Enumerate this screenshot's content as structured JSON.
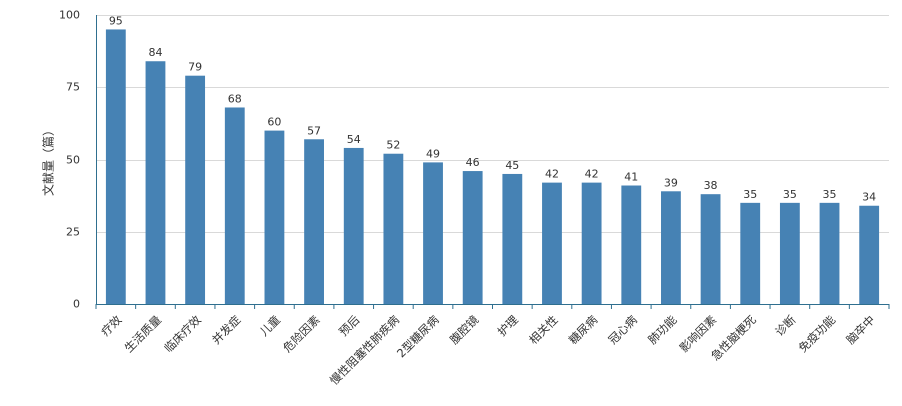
{
  "chart_data": {
    "type": "bar",
    "title": "",
    "xlabel": "",
    "ylabel": "文献量（篇）",
    "ylim": [
      0,
      100
    ],
    "yticks": [
      0,
      25,
      50,
      75,
      100
    ],
    "grid": true,
    "bar_color": "#4682b4",
    "categories": [
      "疗效",
      "生活质量",
      "临床疗效",
      "并发症",
      "儿童",
      "危险因素",
      "预后",
      "慢性阻塞性肺疾病",
      "2型糖尿病",
      "腹腔镜",
      "护理",
      "相关性",
      "糖尿病",
      "冠心病",
      "肺功能",
      "影响因素",
      "急性脑梗死",
      "诊断",
      "免疫功能",
      "脑卒中"
    ],
    "values": [
      95,
      84,
      79,
      68,
      60,
      57,
      54,
      52,
      49,
      46,
      45,
      42,
      42,
      41,
      39,
      38,
      35,
      35,
      35,
      34
    ]
  }
}
